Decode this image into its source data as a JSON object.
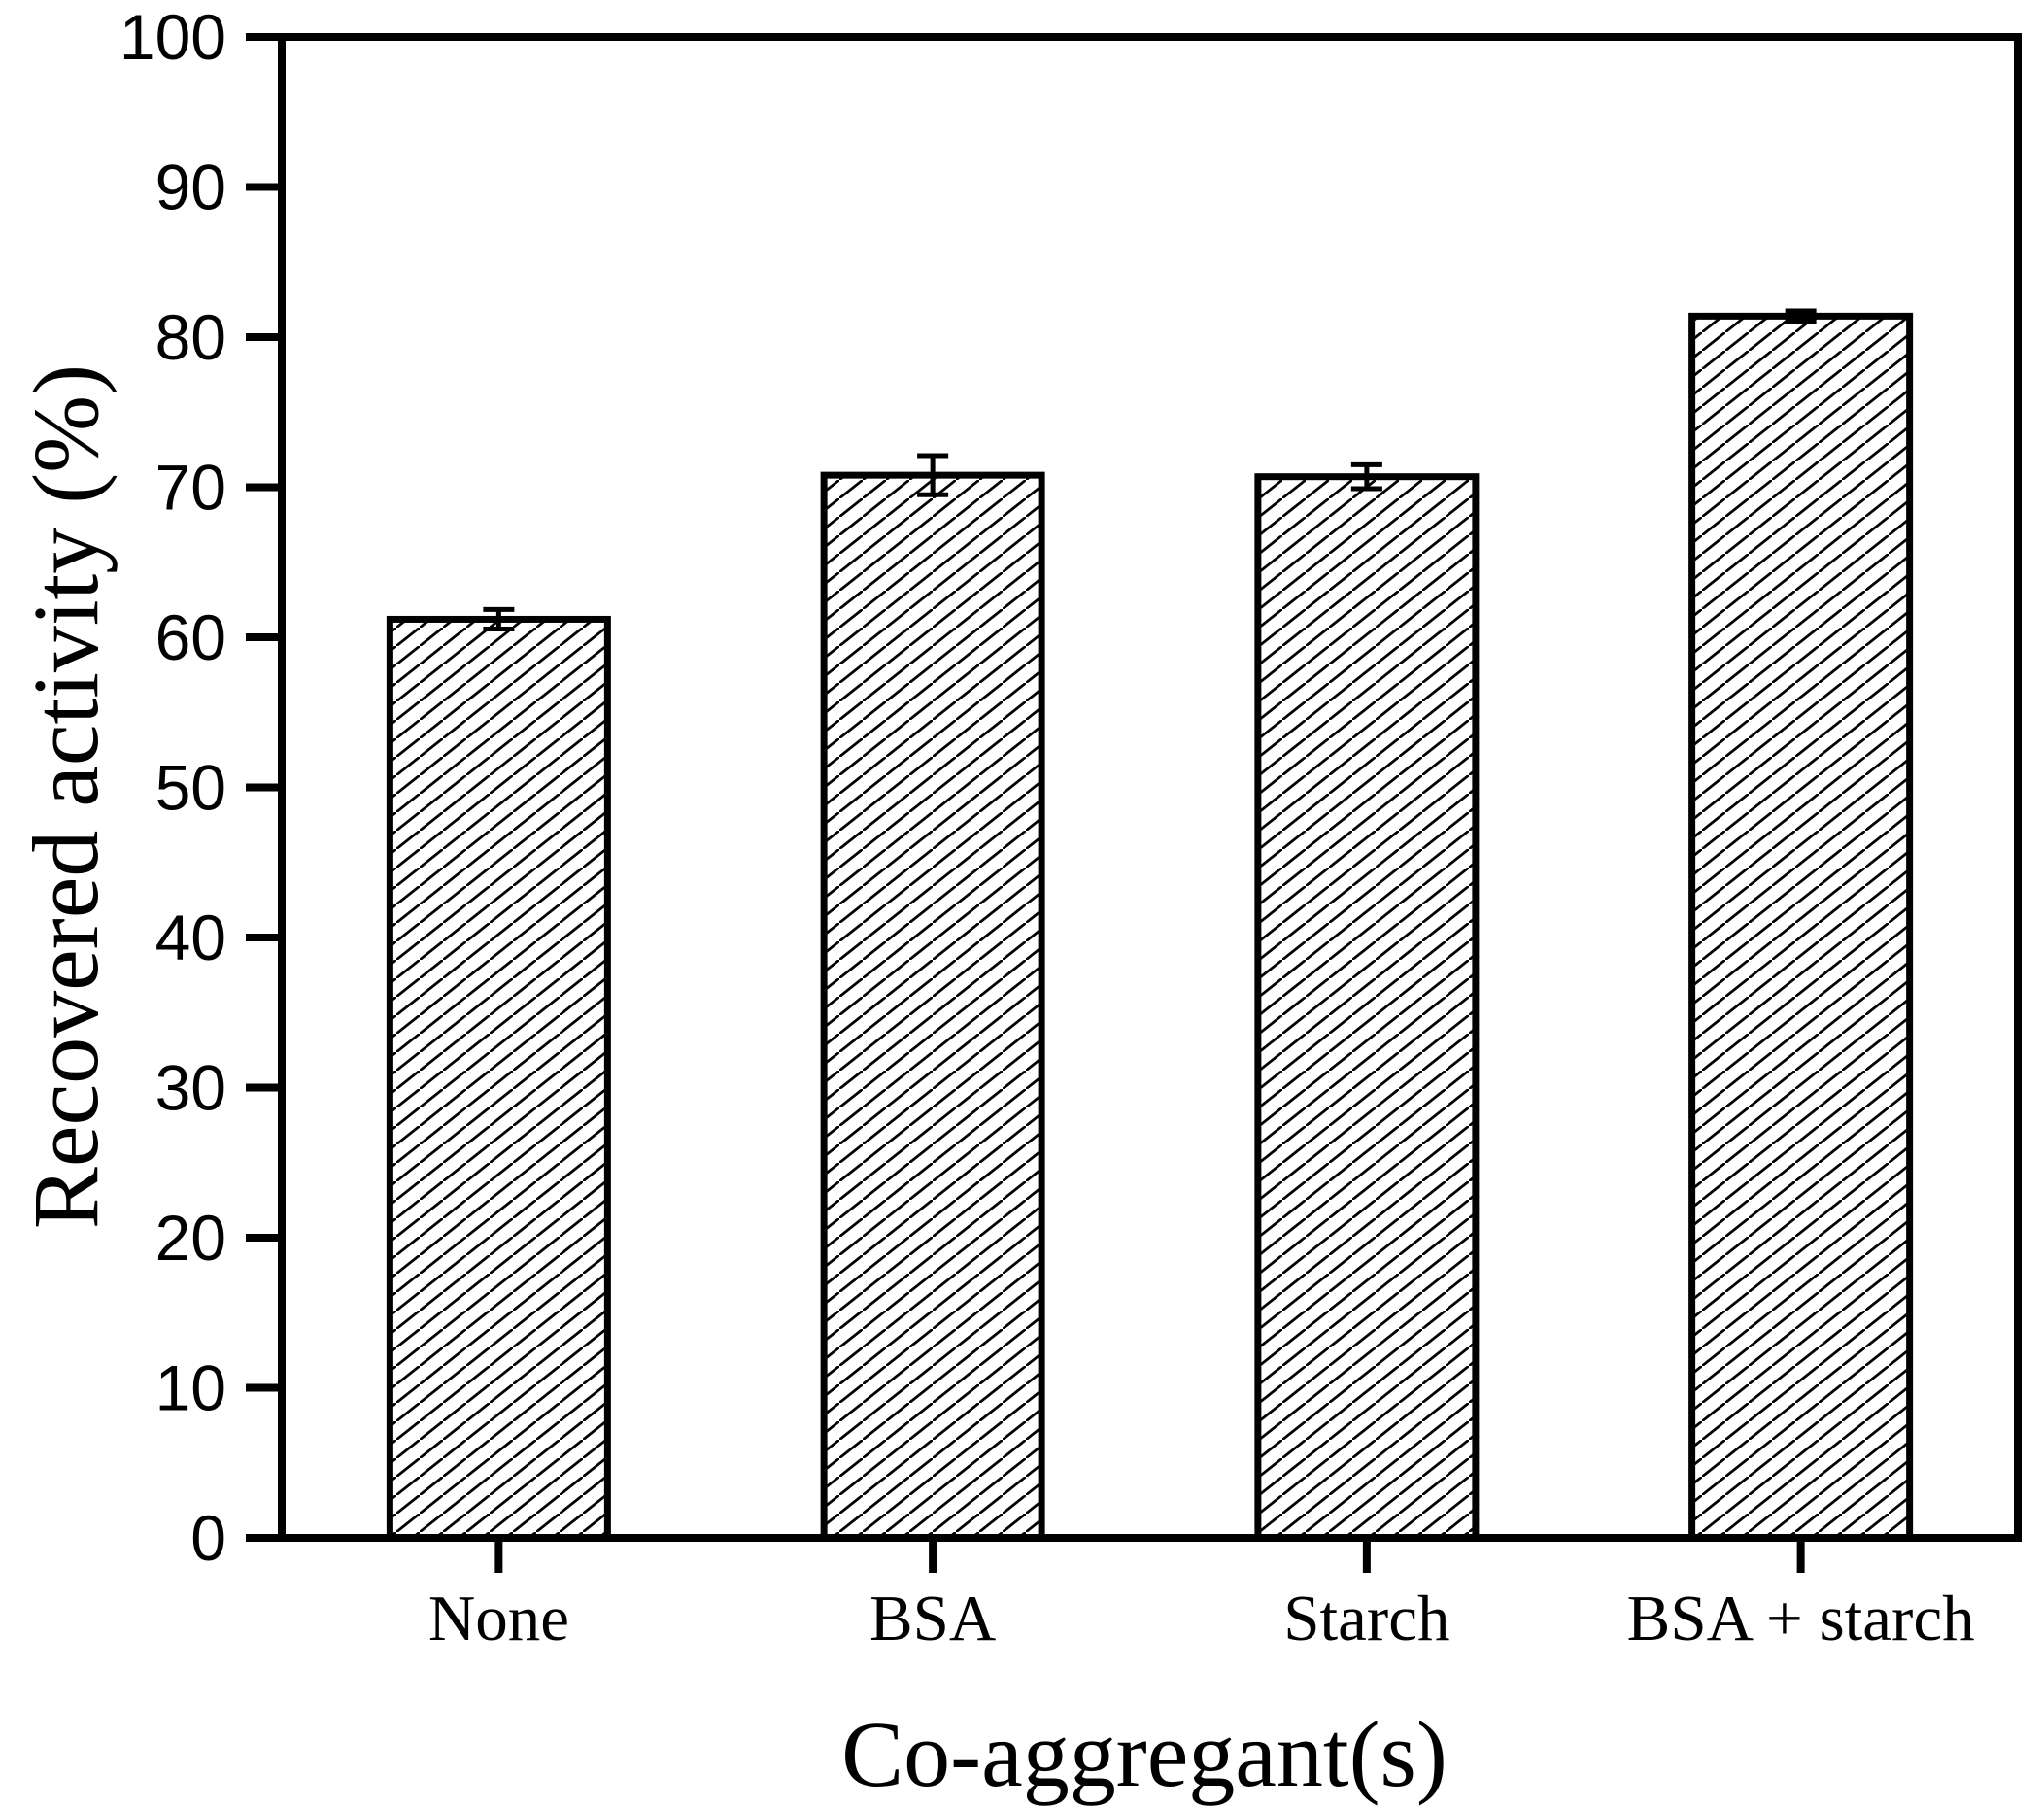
{
  "figure": {
    "background_color": "#ffffff",
    "ink_color": "#000000"
  },
  "chart_data": {
    "type": "bar",
    "title": "",
    "xlabel": "Co-aggregant(s)",
    "ylabel": "Recovered activity (%)",
    "categories": [
      "None",
      "BSA",
      "Starch",
      "BSA + starch"
    ],
    "series": [
      {
        "name": "Recovered activity",
        "values": [
          61.2,
          70.8,
          70.7,
          81.4
        ],
        "error_bars": [
          0.65,
          1.3,
          0.8,
          0.35
        ]
      }
    ],
    "ylim": [
      0,
      100
    ],
    "yticks": [
      0,
      10,
      20,
      30,
      40,
      50,
      60,
      70,
      80,
      90,
      100
    ],
    "xticks_at_category_centers": true,
    "grid": false,
    "legend": false,
    "bar_style": {
      "hatch": "forward-diagonal",
      "hatch_color": "#000000",
      "bar_face_color": "#ffffff",
      "bar_edge_color": "#000000"
    }
  }
}
